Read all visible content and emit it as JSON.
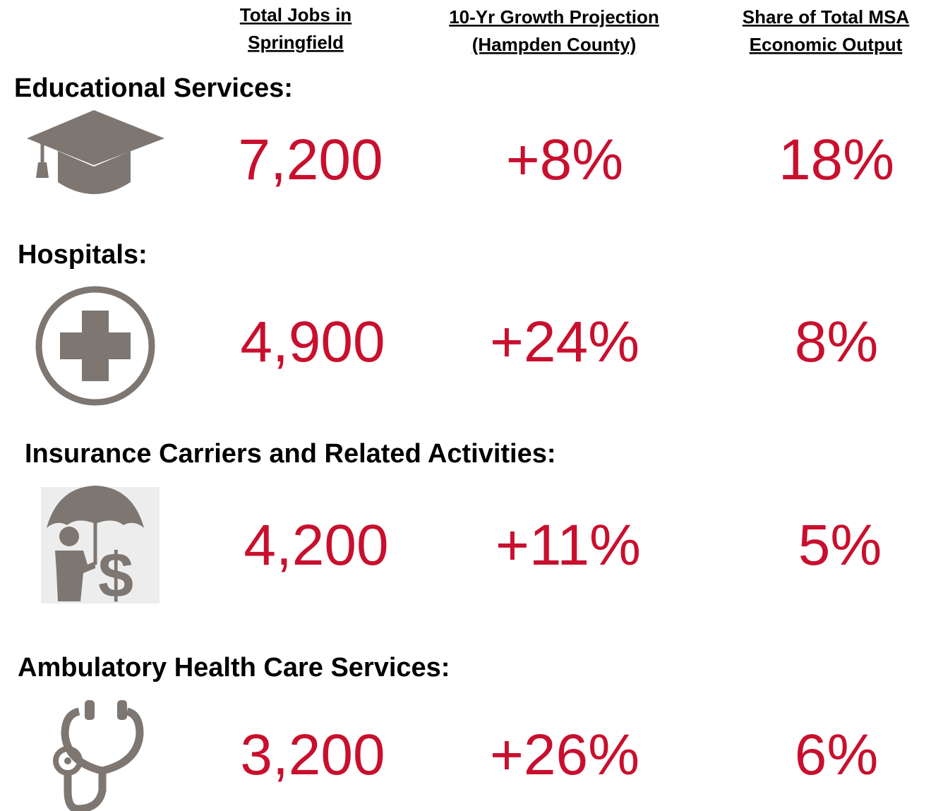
{
  "columns": [
    {
      "lines": [
        "Total Jobs in",
        "Springfield"
      ]
    },
    {
      "lines": [
        "10-Yr Growth Projection",
        "(Hampden County)"
      ]
    },
    {
      "lines": [
        "Share of Total MSA",
        "Economic Output"
      ]
    }
  ],
  "rows": [
    {
      "label": "Educational Services:",
      "cells": [
        "7,200",
        "+8%",
        "18%"
      ]
    },
    {
      "label": "Hospitals:",
      "cells": [
        "4,900",
        "+24%",
        "8%"
      ]
    },
    {
      "label": "Insurance Carriers and Related Activities:",
      "cells": [
        "4,200",
        "+11%",
        "5%"
      ]
    },
    {
      "label": "Ambulatory Health Care Services:",
      "cells": [
        "3,200",
        "+26%",
        "6%"
      ]
    }
  ]
}
